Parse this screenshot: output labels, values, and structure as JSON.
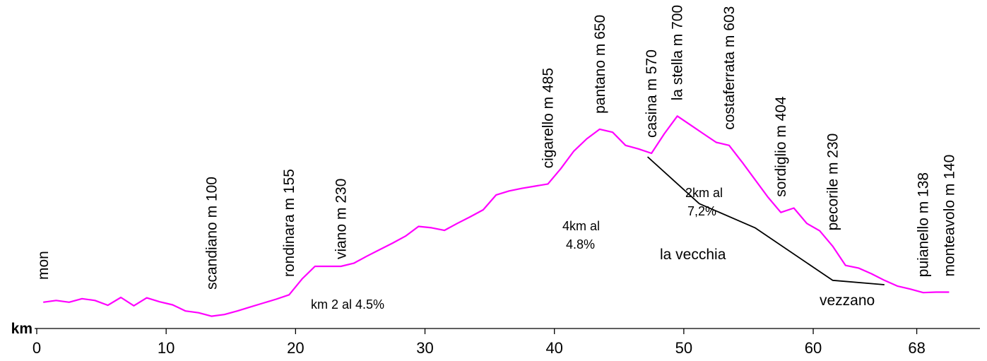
{
  "chart_data": {
    "type": "line",
    "xlabel": "km",
    "ylabel": "",
    "xlim": [
      0,
      72.5
    ],
    "ylim": [
      40,
      790
    ],
    "x_ticks": [
      {
        "value": 0,
        "label": "0"
      },
      {
        "value": 10,
        "label": "10"
      },
      {
        "value": 20,
        "label": "20"
      },
      {
        "value": 30,
        "label": "30"
      },
      {
        "value": 40,
        "label": "40"
      },
      {
        "value": 50,
        "label": "50"
      },
      {
        "value": 60,
        "label": "60"
      },
      {
        "value": 68,
        "label": "68"
      }
    ],
    "series": [
      {
        "color": "#ff00ff",
        "x": [
          0.5,
          1.5,
          2.5,
          3.5,
          4.5,
          5.5,
          6.5,
          7.5,
          8.5,
          9.5,
          10.5,
          11.5,
          12.5,
          13.5,
          14.5,
          15.5,
          16.5,
          17.5,
          18.5,
          19.5,
          20.5,
          21.5,
          22.5,
          23.5,
          24.5,
          25.5,
          26.5,
          27.5,
          28.5,
          29.5,
          30.5,
          31.5,
          32.5,
          33.5,
          34.5,
          35.5,
          36.5,
          37.5,
          38.5,
          39.5,
          40.5,
          41.5,
          42.5,
          43.5,
          44.5,
          45.5,
          46.5,
          47.5,
          48.5,
          49.5,
          50.5,
          51.5,
          52.5,
          53.5,
          54.5,
          55.5,
          56.5,
          57.5,
          58.5,
          59.5,
          60.5,
          61.5,
          62.5,
          63.5,
          64.5,
          65.5,
          66.5,
          67.5,
          68.5,
          69.5,
          70.5
        ],
        "values": [
          100,
          104,
          100,
          108,
          104,
          93,
          111,
          92,
          110,
          101,
          94,
          80,
          76,
          68,
          72,
          80,
          89,
          98,
          107,
          117,
          153,
          182,
          182,
          182,
          189,
          205,
          220,
          235,
          251,
          273,
          270,
          264,
          280,
          295,
          311,
          345,
          354,
          360,
          365,
          370,
          405,
          445,
          473,
          495,
          488,
          458,
          450,
          440,
          485,
          525,
          505,
          485,
          465,
          458,
          420,
          380,
          340,
          305,
          315,
          280,
          263,
          228,
          184,
          178,
          165,
          150,
          137,
          130,
          122,
          123,
          123
        ]
      },
      {
        "name": "la vecchia",
        "color": "#000000",
        "x": [
          47.2,
          51.2,
          55.5,
          61.5,
          65.5
        ],
        "values": [
          432,
          325,
          270,
          150,
          140
        ]
      }
    ],
    "place_labels": [
      {
        "text": "mon",
        "km": 0.5
      },
      {
        "text": "scandiano m 100",
        "km": 13.5
      },
      {
        "text": "rondinara m 155",
        "km": 19.5
      },
      {
        "text": "viano m 230",
        "km": 23.5
      },
      {
        "text": "cigarello m 485",
        "km": 39.5
      },
      {
        "text": "pantano m 650",
        "km": 43.5
      },
      {
        "text": "casina m 570",
        "km": 47.5
      },
      {
        "text": "la stella m 700",
        "km": 49.5
      },
      {
        "text": "costaferrata m 603",
        "km": 53.5
      },
      {
        "text": "sordiglio m 404",
        "km": 57.5
      },
      {
        "text": "pecorile m 230",
        "km": 61.5
      },
      {
        "text": "puianello m 138",
        "km": 68.5
      },
      {
        "text": "monteavolo m 140",
        "km": 70.5
      }
    ],
    "annotations": [
      {
        "text": "km 2 al 4.5%"
      },
      {
        "line1": "4km al",
        "line2": "4.8%"
      },
      {
        "line1": "2km al",
        "line2": "7,2%"
      },
      {
        "text": "la vecchia"
      },
      {
        "text": "vezzano"
      }
    ]
  }
}
